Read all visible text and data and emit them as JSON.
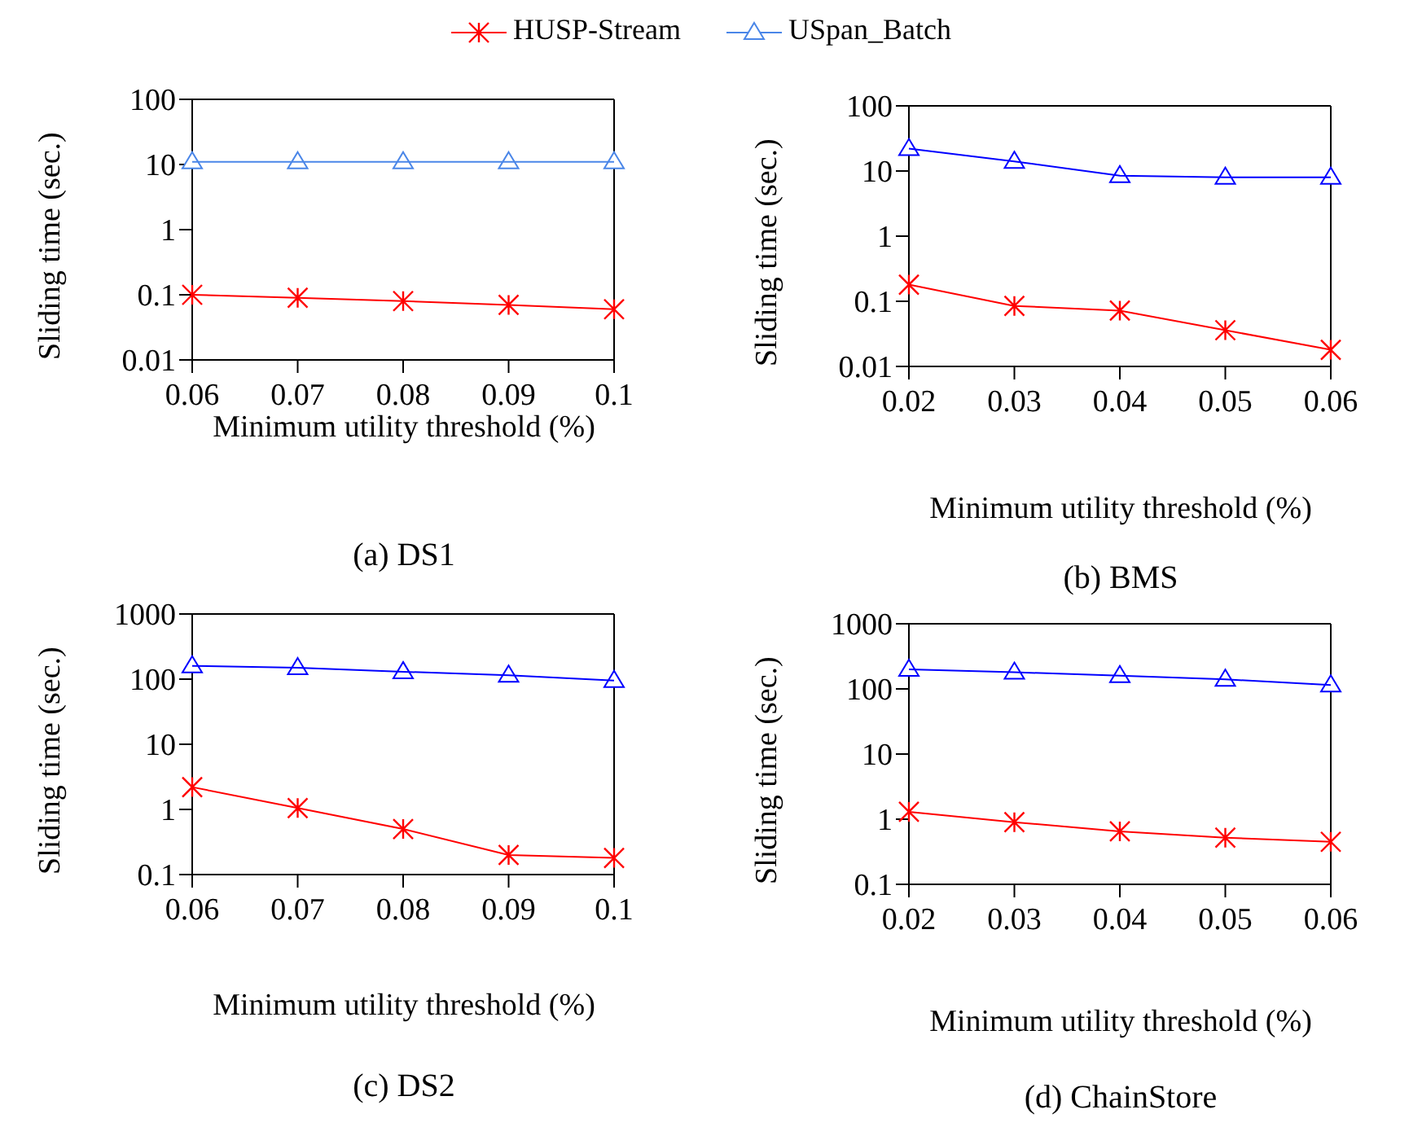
{
  "chart_data": [
    {
      "type": "line",
      "title": "(a) DS1",
      "xlabel": "Minimum utility threshold (%)",
      "ylabel": "Sliding time (sec.)",
      "categories": [
        "0.06",
        "0.07",
        "0.08",
        "0.09",
        "0.1"
      ],
      "log": "y",
      "ylim": [
        0.01,
        100
      ],
      "yticks": [
        0.01,
        0.1,
        1,
        10,
        100
      ],
      "grid": false,
      "legend": "top",
      "series": [
        {
          "name": "HUSP-Stream",
          "color": "#ff0000",
          "marker": "cross",
          "values": [
            0.1,
            0.09,
            0.08,
            0.07,
            0.06
          ]
        },
        {
          "name": "USpan_Batch",
          "color": "#4a86e8",
          "marker": "triangle",
          "values": [
            11,
            11,
            11,
            11,
            11
          ]
        }
      ]
    },
    {
      "type": "line",
      "title": "(b) BMS",
      "xlabel": "Minimum utility threshold (%)",
      "ylabel": "Sliding time (sec.)",
      "categories": [
        "0.02",
        "0.03",
        "0.04",
        "0.05",
        "0.06"
      ],
      "log": "y",
      "ylim": [
        0.01,
        100
      ],
      "yticks": [
        0.01,
        0.1,
        1,
        10,
        100
      ],
      "grid": false,
      "series": [
        {
          "color": "#ff0000",
          "marker": "cross",
          "values": [
            0.18,
            0.085,
            0.072,
            0.036,
            0.018
          ]
        },
        {
          "color": "#0000ff",
          "marker": "triangle",
          "values": [
            22,
            14,
            8.5,
            8,
            8
          ]
        }
      ]
    },
    {
      "type": "line",
      "title": "(c) DS2",
      "xlabel": "Minimum utility threshold (%)",
      "ylabel": "Sliding time (sec.)",
      "categories": [
        "0.06",
        "0.07",
        "0.08",
        "0.09",
        "0.1"
      ],
      "log": "y",
      "ylim": [
        0.1,
        1000
      ],
      "yticks": [
        0.1,
        1,
        10,
        100,
        1000
      ],
      "grid": false,
      "series": [
        {
          "color": "#ff0000",
          "marker": "cross",
          "values": [
            2.2,
            1.05,
            0.5,
            0.2,
            0.18
          ]
        },
        {
          "color": "#0000ff",
          "marker": "triangle",
          "values": [
            160,
            150,
            130,
            115,
            95
          ]
        }
      ]
    },
    {
      "type": "line",
      "title": "(d) ChainStore",
      "xlabel": "Minimum utility threshold (%)",
      "ylabel": "Sliding time (sec.)",
      "categories": [
        "0.02",
        "0.03",
        "0.04",
        "0.05",
        "0.06"
      ],
      "log": "y",
      "ylim": [
        0.1,
        1000
      ],
      "yticks": [
        0.1,
        1,
        10,
        100,
        1000
      ],
      "grid": false,
      "series": [
        {
          "color": "#ff0000",
          "marker": "cross",
          "values": [
            1.3,
            0.9,
            0.65,
            0.52,
            0.45
          ]
        },
        {
          "color": "#0000ff",
          "marker": "triangle",
          "values": [
            200,
            180,
            160,
            140,
            115
          ]
        }
      ]
    }
  ]
}
